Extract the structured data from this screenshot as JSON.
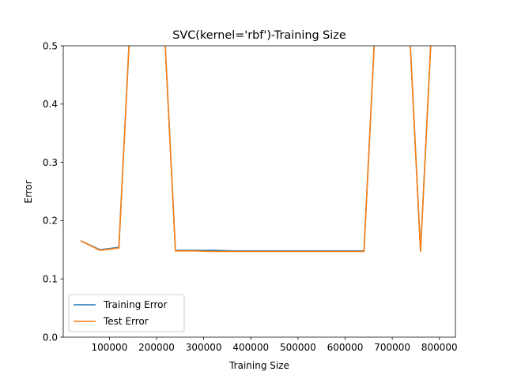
{
  "chart_data": {
    "type": "line",
    "title": "SVC(kernel='rbf')-Training Size",
    "xlabel": "Training Size",
    "ylabel": "Error",
    "xlim": [
      2000,
      834000
    ],
    "ylim": [
      0,
      0.5
    ],
    "xticks": [
      100000,
      200000,
      300000,
      400000,
      500000,
      600000,
      700000,
      800000
    ],
    "xtick_labels": [
      "100000",
      "200000",
      "300000",
      "400000",
      "500000",
      "600000",
      "700000",
      "800000"
    ],
    "yticks": [
      0.0,
      0.1,
      0.2,
      0.3,
      0.4,
      0.5
    ],
    "ytick_labels": [
      "0.0",
      "0.1",
      "0.2",
      "0.3",
      "0.4",
      "0.5"
    ],
    "grid": false,
    "legend_position": "lower-left",
    "series": [
      {
        "name": "Training Error",
        "color": "#1f77b4",
        "x": [
          40000,
          80000,
          120000,
          160000,
          200000,
          240000,
          280000,
          320000,
          360000,
          400000,
          440000,
          480000,
          520000,
          560000,
          600000,
          640000,
          680000,
          720000,
          760000,
          800000
        ],
        "y": [
          0.165,
          0.15,
          0.154,
          0.8,
          0.8,
          0.149,
          0.149,
          0.149,
          0.148,
          0.148,
          0.148,
          0.148,
          0.148,
          0.148,
          0.148,
          0.148,
          0.8,
          0.8,
          0.148,
          0.8
        ]
      },
      {
        "name": "Test Error",
        "color": "#ff7f0e",
        "x": [
          40000,
          80000,
          120000,
          160000,
          200000,
          240000,
          280000,
          320000,
          360000,
          400000,
          440000,
          480000,
          520000,
          560000,
          600000,
          640000,
          680000,
          720000,
          760000,
          800000
        ],
        "y": [
          0.165,
          0.149,
          0.153,
          0.8,
          0.8,
          0.148,
          0.148,
          0.147,
          0.147,
          0.147,
          0.147,
          0.147,
          0.147,
          0.147,
          0.147,
          0.147,
          0.8,
          0.8,
          0.147,
          0.8
        ]
      }
    ]
  }
}
